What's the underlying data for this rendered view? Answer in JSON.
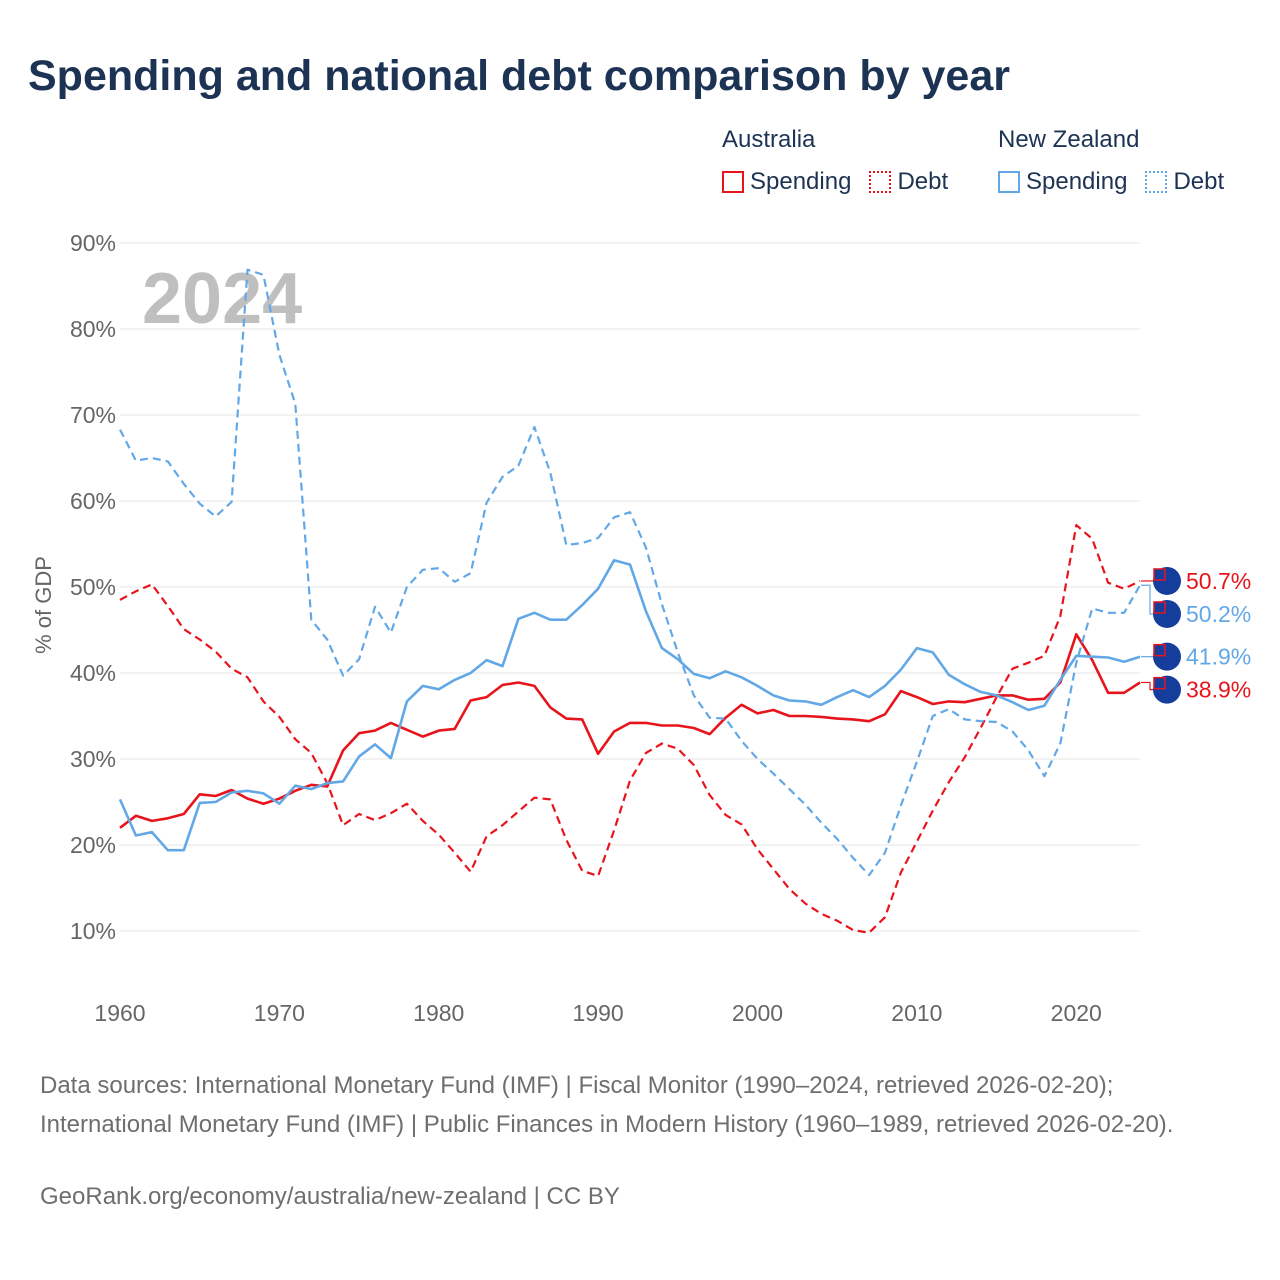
{
  "title": "Spending and national debt comparison by year",
  "legend": {
    "groups": [
      {
        "name": "Australia",
        "spending_label": "Spending",
        "debt_label": "Debt"
      },
      {
        "name": "New Zealand",
        "spending_label": "Spending",
        "debt_label": "Debt"
      }
    ]
  },
  "sources": "Data sources: International Monetary Fund (IMF) | Fiscal Monitor (1990–2024, retrieved 2026-02-20); International Monetary Fund (IMF) | Public Finances in Modern History (1960–1989, retrieved 2026-02-20).",
  "credit": "GeoRank.org/economy/australia/new-zealand | CC BY",
  "colors": {
    "australia": "#e8141c",
    "new_zealand": "#63a8e6",
    "title": "#1d3354",
    "grid": "#e6e6e6",
    "axis_text": "#666666",
    "year_overlay": "#bfbfbf"
  },
  "chart_data": {
    "type": "line",
    "title": "Spending and national debt comparison by year",
    "ylabel": "% of GDP",
    "xlabel": "",
    "year_overlay": "2024",
    "xlim": [
      1960,
      2024
    ],
    "ylim": [
      0,
      90
    ],
    "x_ticks": [
      1960,
      1970,
      1980,
      1990,
      2000,
      2010,
      2020
    ],
    "y_ticks": [
      10,
      20,
      30,
      40,
      50,
      60,
      70,
      80,
      90
    ],
    "y_tick_labels": [
      "10%",
      "20%",
      "30%",
      "40%",
      "50%",
      "60%",
      "70%",
      "80%",
      "90%"
    ],
    "x": [
      1960,
      1961,
      1962,
      1963,
      1964,
      1965,
      1966,
      1967,
      1968,
      1969,
      1970,
      1971,
      1972,
      1973,
      1974,
      1975,
      1976,
      1977,
      1978,
      1979,
      1980,
      1981,
      1982,
      1983,
      1984,
      1985,
      1986,
      1987,
      1988,
      1989,
      1990,
      1991,
      1992,
      1993,
      1994,
      1995,
      1996,
      1997,
      1998,
      1999,
      2000,
      2001,
      2002,
      2003,
      2004,
      2005,
      2006,
      2007,
      2008,
      2009,
      2010,
      2011,
      2012,
      2013,
      2014,
      2015,
      2016,
      2017,
      2018,
      2019,
      2020,
      2021,
      2022,
      2023,
      2024
    ],
    "series": [
      {
        "name": "Australia Spending",
        "country": "Australia",
        "measure": "Spending",
        "style": "solid",
        "end_label": "38.9%",
        "values": [
          22.0,
          23.4,
          22.8,
          23.1,
          23.6,
          25.9,
          25.7,
          26.4,
          25.4,
          24.8,
          25.4,
          26.3,
          27.0,
          26.8,
          31.0,
          33.0,
          33.3,
          34.2,
          33.4,
          32.6,
          33.3,
          33.5,
          36.8,
          37.2,
          38.6,
          38.9,
          38.5,
          36.0,
          34.7,
          34.6,
          30.6,
          33.2,
          34.2,
          34.2,
          33.9,
          33.9,
          33.6,
          32.9,
          34.8,
          36.3,
          35.3,
          35.7,
          35.0,
          35.0,
          34.9,
          34.7,
          34.6,
          34.4,
          35.2,
          37.9,
          37.2,
          36.4,
          36.7,
          36.6,
          37.0,
          37.4,
          37.4,
          36.9,
          37.0,
          38.9,
          44.5,
          41.5,
          37.7,
          37.7,
          38.9
        ]
      },
      {
        "name": "Australia Debt",
        "country": "Australia",
        "measure": "Debt",
        "style": "dashed",
        "end_label": "50.7%",
        "values": [
          48.5,
          49.5,
          50.3,
          47.8,
          45.1,
          43.9,
          42.5,
          40.5,
          39.5,
          36.7,
          34.9,
          32.3,
          30.7,
          27.2,
          22.3,
          23.6,
          22.9,
          23.7,
          24.8,
          22.8,
          21.2,
          19.1,
          16.9,
          21.0,
          22.3,
          23.9,
          25.5,
          25.3,
          20.6,
          17.0,
          16.4,
          21.7,
          27.5,
          30.7,
          31.8,
          31.2,
          29.3,
          25.8,
          23.5,
          22.4,
          19.5,
          17.2,
          14.9,
          13.2,
          12.0,
          11.2,
          10.1,
          9.8,
          11.6,
          16.8,
          20.4,
          24.0,
          27.3,
          30.2,
          33.6,
          37.2,
          40.5,
          41.2,
          42.0,
          46.6,
          57.2,
          55.6,
          50.5,
          49.8,
          50.7
        ]
      },
      {
        "name": "New Zealand Spending",
        "country": "New Zealand",
        "measure": "Spending",
        "style": "solid",
        "end_label": "41.9%",
        "values": [
          25.3,
          21.1,
          21.5,
          19.4,
          19.4,
          24.9,
          25.0,
          26.1,
          26.3,
          26.0,
          24.8,
          26.9,
          26.5,
          27.2,
          27.4,
          30.3,
          31.7,
          30.1,
          36.7,
          38.5,
          38.1,
          39.2,
          40.0,
          41.5,
          40.8,
          46.3,
          47.0,
          46.2,
          46.2,
          47.9,
          49.8,
          53.1,
          52.6,
          47.2,
          42.9,
          41.6,
          39.9,
          39.4,
          40.2,
          39.5,
          38.5,
          37.4,
          36.8,
          36.7,
          36.3,
          37.2,
          38.0,
          37.2,
          38.5,
          40.4,
          42.9,
          42.4,
          39.8,
          38.7,
          37.8,
          37.4,
          36.6,
          35.7,
          36.2,
          39.2,
          42.0,
          41.9,
          41.8,
          41.3,
          41.9
        ]
      },
      {
        "name": "New Zealand Debt",
        "country": "New Zealand",
        "measure": "Debt",
        "style": "dashed",
        "end_label": "50.2%",
        "values": [
          68.3,
          64.7,
          65.0,
          64.6,
          62.0,
          59.7,
          58.2,
          59.9,
          86.9,
          86.3,
          77.0,
          71.3,
          46.2,
          43.9,
          39.7,
          41.6,
          47.7,
          44.7,
          50.0,
          52.0,
          52.2,
          50.6,
          51.6,
          59.8,
          62.8,
          64.1,
          68.6,
          63.3,
          54.9,
          55.1,
          55.7,
          58.1,
          58.7,
          54.6,
          48.0,
          42.4,
          37.4,
          34.8,
          34.7,
          32.1,
          30.0,
          28.3,
          26.5,
          24.7,
          22.6,
          20.7,
          18.5,
          16.5,
          19.1,
          24.6,
          29.7,
          35.0,
          35.8,
          34.6,
          34.4,
          34.3,
          33.2,
          31.0,
          28.0,
          31.8,
          41.2,
          47.5,
          47.0,
          47.0,
          50.2
        ]
      }
    ]
  }
}
